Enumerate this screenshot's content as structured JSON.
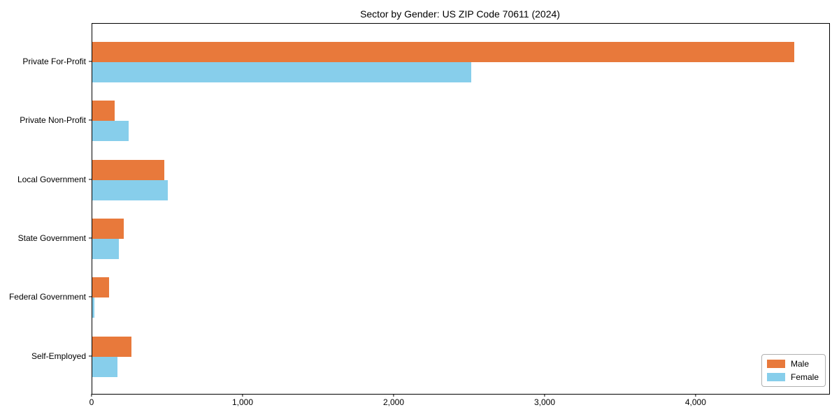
{
  "page": {
    "background": "#ffffff"
  },
  "chart_data": {
    "type": "bar",
    "orientation": "horizontal",
    "title": "Sector by Gender: US ZIP Code 70611 (2024)",
    "categories": [
      "Private For-Profit",
      "Private Non-Profit",
      "Local Government",
      "State Government",
      "Federal Government",
      "Self-Employed"
    ],
    "series": [
      {
        "name": "Male",
        "color": "#E8793B",
        "values": [
          4650,
          150,
          475,
          210,
          110,
          260
        ]
      },
      {
        "name": "Female",
        "color": "#87CEEB",
        "values": [
          2510,
          240,
          500,
          175,
          15,
          165
        ]
      }
    ],
    "x_axis": {
      "min": 0,
      "max": 4880,
      "ticks": [
        0,
        1000,
        2000,
        3000,
        4000
      ],
      "tick_labels": [
        "0",
        "1,000",
        "2,000",
        "3,000",
        "4,000"
      ]
    },
    "legend": {
      "position": "lower right",
      "entries": [
        "Male",
        "Female"
      ]
    },
    "grid": false
  }
}
